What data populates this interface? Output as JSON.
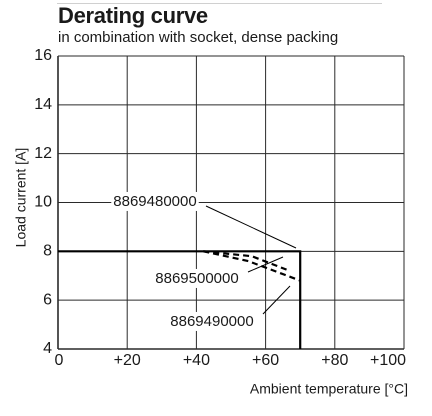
{
  "chart_data": {
    "type": "line",
    "title": "Derating curve",
    "subtitle": "in combination with socket, dense packing",
    "xlabel": "Ambient temperature [°C]",
    "ylabel": "Load current [A]",
    "xlim": [
      0,
      100
    ],
    "ylim": [
      4,
      16
    ],
    "x_ticks": [
      0,
      20,
      40,
      60,
      80,
      100
    ],
    "x_tick_labels": [
      "0",
      "+20",
      "+40",
      "+60",
      "+80",
      "+100"
    ],
    "y_ticks": [
      4,
      6,
      8,
      10,
      12,
      14,
      16
    ],
    "y_tick_labels": [
      "4",
      "6",
      "8",
      "10",
      "12",
      "14",
      "16"
    ],
    "grid": true,
    "legend": "none",
    "series": [
      {
        "name": "8869480000",
        "style": "solid",
        "x": [
          0,
          70,
          70
        ],
        "y": [
          8,
          8,
          4
        ]
      },
      {
        "name": "8869500000",
        "style": "dashed",
        "x": [
          42,
          56,
          67
        ],
        "y": [
          8,
          7.8,
          7.2
        ]
      },
      {
        "name": "8869490000",
        "style": "dashed",
        "x": [
          42,
          55,
          70
        ],
        "y": [
          8,
          7.6,
          6.8
        ]
      }
    ],
    "annotations": [
      {
        "text": "8869480000",
        "points_to": [
          69.5,
          8
        ]
      },
      {
        "text": "8869500000",
        "points_to": [
          65,
          7.5
        ]
      },
      {
        "text": "8869490000",
        "points_to": [
          67,
          6.95
        ]
      }
    ]
  },
  "colors": {
    "grid": "#2a2a2a",
    "line": "#000000",
    "text": "#1a1a1a"
  }
}
